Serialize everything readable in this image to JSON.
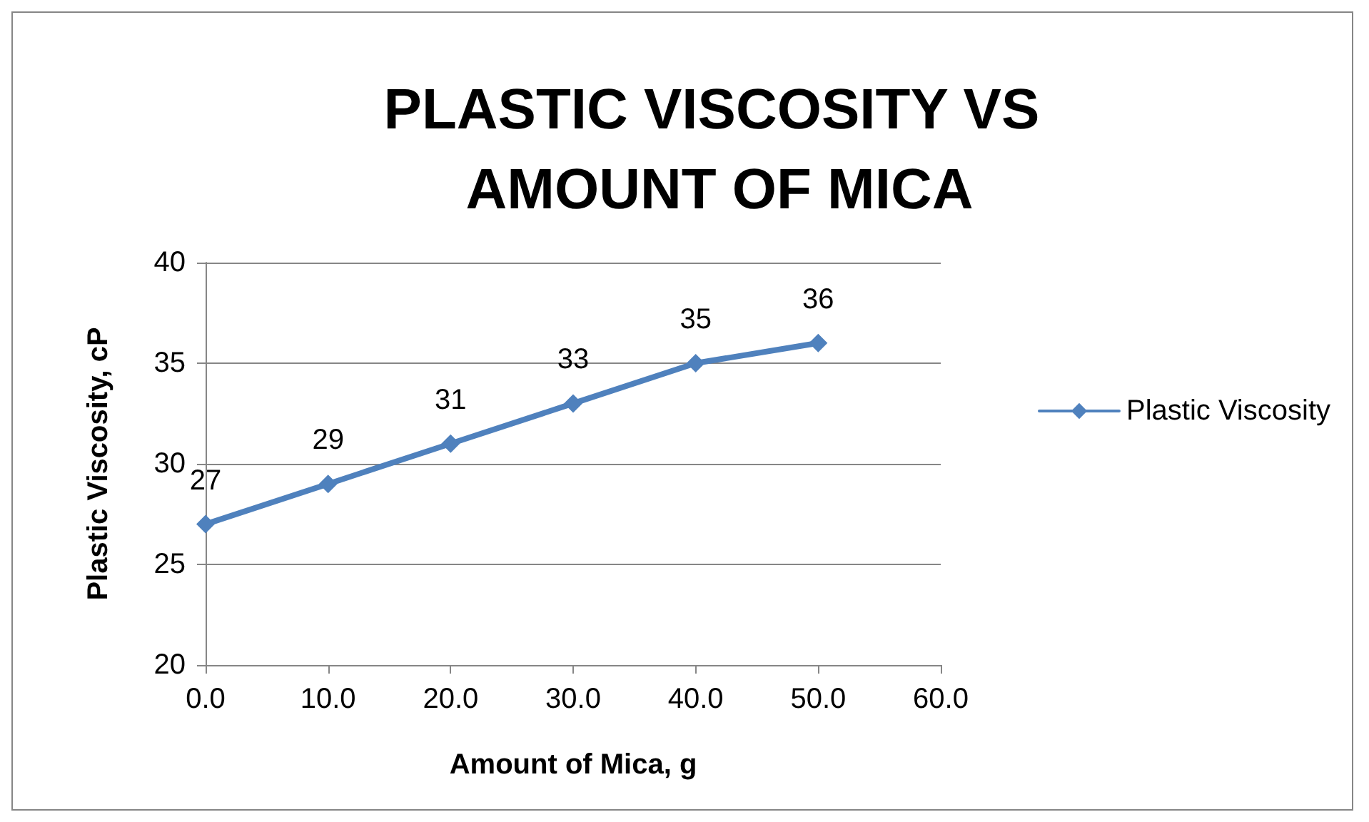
{
  "chart_data": {
    "type": "line",
    "title": "PLASTIC VISCOSITY VS AMOUNT OF MICA",
    "xlabel": "Amount of Mica, g",
    "ylabel": "Plastic Viscosity, cP",
    "x": [
      0,
      10,
      20,
      30,
      40,
      50
    ],
    "series": [
      {
        "name": "Plastic Viscosity",
        "color": "#4f81bd",
        "values": [
          27,
          29,
          31,
          33,
          35,
          36
        ]
      }
    ],
    "xlim": [
      0,
      60
    ],
    "xticks": [
      {
        "value": 0,
        "label": "0.0"
      },
      {
        "value": 10,
        "label": "10.0"
      },
      {
        "value": 20,
        "label": "20.0"
      },
      {
        "value": 30,
        "label": "30.0"
      },
      {
        "value": 40,
        "label": "40.0"
      },
      {
        "value": 50,
        "label": "50.0"
      },
      {
        "value": 60,
        "label": "60.0"
      }
    ],
    "ylim": [
      20,
      40
    ],
    "yticks": [
      20,
      25,
      30,
      35,
      40
    ],
    "grid": "y",
    "legend": "right",
    "marker": "diamond",
    "line_style": "solid",
    "data_labels": true
  }
}
